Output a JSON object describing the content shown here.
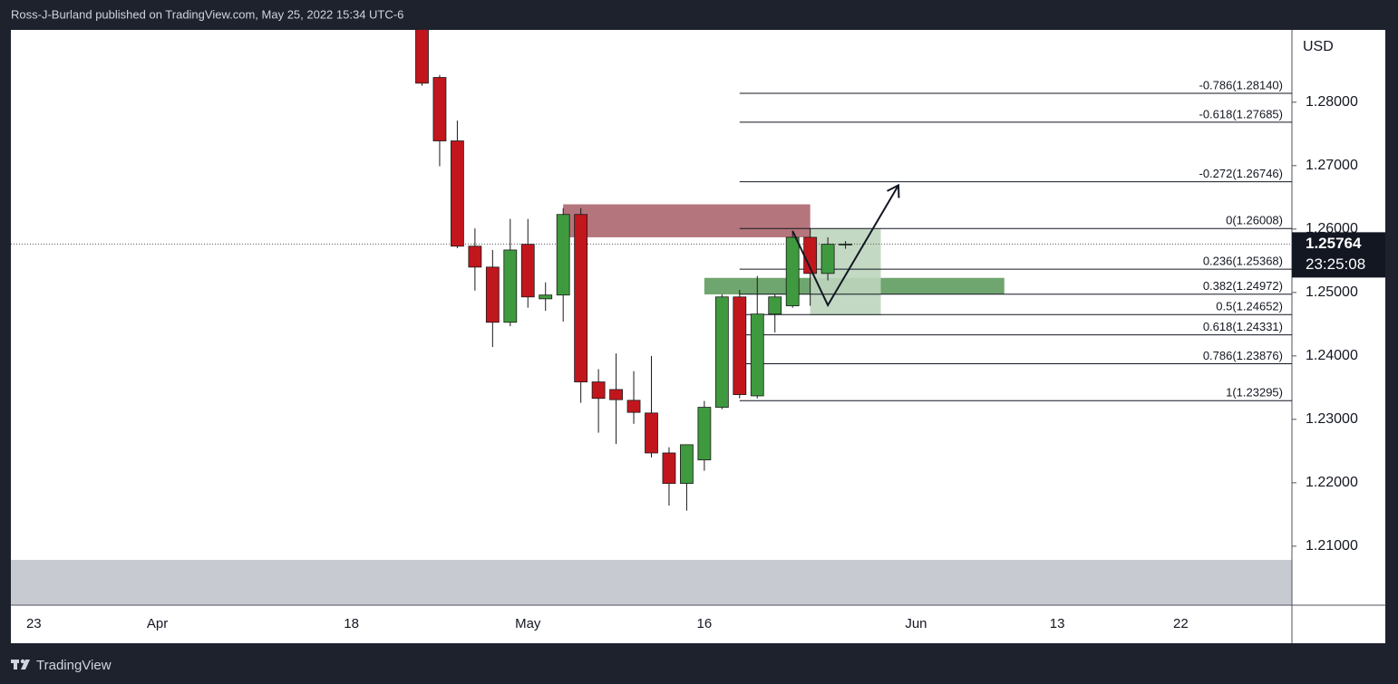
{
  "header": {
    "text": "Ross-J-Burland published on TradingView.com, May 25, 2022 15:34 UTC-6"
  },
  "footer": {
    "logo": "TradingView"
  },
  "chart_data": {
    "type": "candlestick",
    "y_axis_label": "USD",
    "up_color": "#3f9a3f",
    "down_color": "#c2161d",
    "wick_color": "#1a1a1a",
    "x": [
      "2022-04-22",
      "2022-04-25",
      "2022-04-26",
      "2022-04-27",
      "2022-04-28",
      "2022-04-29",
      "2022-05-02",
      "2022-05-03",
      "2022-05-04",
      "2022-05-05",
      "2022-05-06",
      "2022-05-09",
      "2022-05-10",
      "2022-05-11",
      "2022-05-12",
      "2022-05-13",
      "2022-05-16",
      "2022-05-17",
      "2022-05-18",
      "2022-05-19",
      "2022-05-20",
      "2022-05-23",
      "2022-05-24",
      "2022-05-25",
      "2022-05-26"
    ],
    "open": [
      1.2925,
      1.2839,
      1.2739,
      1.2573,
      1.254,
      1.2453,
      1.2576,
      1.249,
      1.2496,
      1.2623,
      1.2359,
      1.2347,
      1.233,
      1.231,
      1.2247,
      1.2199,
      1.2236,
      1.2319,
      1.2493,
      1.2337,
      1.2466,
      1.2479,
      1.2587,
      1.253,
      1.2575
    ],
    "high": [
      1.2935,
      1.2843,
      1.2771,
      1.2601,
      1.2567,
      1.2616,
      1.2616,
      1.2516,
      1.2633,
      1.2633,
      1.2379,
      1.2404,
      1.2376,
      1.24,
      1.2256,
      1.226,
      1.2329,
      1.2497,
      1.2504,
      1.2526,
      1.2497,
      1.2597,
      1.2601,
      1.2587,
      1.2581
    ],
    "low": [
      1.2826,
      1.2699,
      1.257,
      1.2503,
      1.2414,
      1.2447,
      1.2476,
      1.2471,
      1.2454,
      1.2326,
      1.2279,
      1.2261,
      1.2293,
      1.224,
      1.2164,
      1.2156,
      1.2219,
      1.2316,
      1.2333,
      1.2333,
      1.2437,
      1.2476,
      1.2479,
      1.2519,
      1.2569
    ],
    "close": [
      1.283,
      1.2739,
      1.2573,
      1.254,
      1.2453,
      1.2567,
      1.2493,
      1.2496,
      1.2623,
      1.2359,
      1.2333,
      1.2331,
      1.2311,
      1.2247,
      1.2199,
      1.226,
      1.2319,
      1.2493,
      1.2339,
      1.2466,
      1.2493,
      1.2587,
      1.253,
      1.2576,
      1.25764
    ],
    "ylim": [
      1.2007,
      1.2914
    ],
    "yticks": [
      {
        "value": 1.21,
        "label": "1.21000"
      },
      {
        "value": 1.22,
        "label": "1.22000"
      },
      {
        "value": 1.23,
        "label": "1.23000"
      },
      {
        "value": 1.24,
        "label": "1.24000"
      },
      {
        "value": 1.25,
        "label": "1.25000"
      },
      {
        "value": 1.26,
        "label": "1.26000"
      },
      {
        "value": 1.27,
        "label": "1.27000"
      },
      {
        "value": 1.28,
        "label": "1.28000"
      }
    ],
    "xlim": [
      "2022-03-22",
      "2022-06-30"
    ],
    "xticks": [
      {
        "value": "2022-03-23",
        "label": "23"
      },
      {
        "value": "2022-04-01",
        "label": "Apr"
      },
      {
        "value": "2022-04-18",
        "label": "18"
      },
      {
        "value": "2022-05-02",
        "label": "May"
      },
      {
        "value": "2022-05-16",
        "label": "16"
      },
      {
        "value": "2022-06-01",
        "label": "Jun"
      },
      {
        "value": "2022-06-13",
        "label": "13"
      },
      {
        "value": "2022-06-22",
        "label": "22"
      }
    ],
    "last_price": {
      "value": 1.25764,
      "label": "1.25764",
      "countdown": "23:25:08"
    },
    "fib_start": "2022-05-18",
    "fib_levels": [
      {
        "value": 1.2814,
        "label": "-0.786(1.28140)"
      },
      {
        "value": 1.27685,
        "label": "-0.618(1.27685)"
      },
      {
        "value": 1.26746,
        "label": "-0.272(1.26746)"
      },
      {
        "value": 1.26008,
        "label": "0(1.26008)"
      },
      {
        "value": 1.25368,
        "label": "0.236(1.25368)"
      },
      {
        "value": 1.24972,
        "label": "0.382(1.24972)"
      },
      {
        "value": 1.24652,
        "label": "0.5(1.24652)"
      },
      {
        "value": 1.24331,
        "label": "0.618(1.24331)"
      },
      {
        "value": 1.23876,
        "label": "0.786(1.23876)"
      },
      {
        "value": 1.23295,
        "label": "1(1.23295)"
      }
    ],
    "zones": [
      {
        "x": [
          "2022-05-04",
          "2022-05-24"
        ],
        "y": [
          1.2639,
          1.2587
        ],
        "color": "#ad666e"
      },
      {
        "x": [
          "2022-05-16",
          "2022-06-08"
        ],
        "y": [
          1.2523,
          1.2497
        ],
        "color": "#5f9b5f"
      },
      {
        "x": [
          "2022-05-24",
          "2022-05-30"
        ],
        "y": [
          1.2601,
          1.2464
        ],
        "color": "#bcd5bc"
      }
    ],
    "arrow": {
      "x": [
        "2022-05-23",
        "2022-05-25",
        "2022-05-31"
      ],
      "y": [
        1.2597,
        1.248,
        1.2669
      ]
    }
  }
}
